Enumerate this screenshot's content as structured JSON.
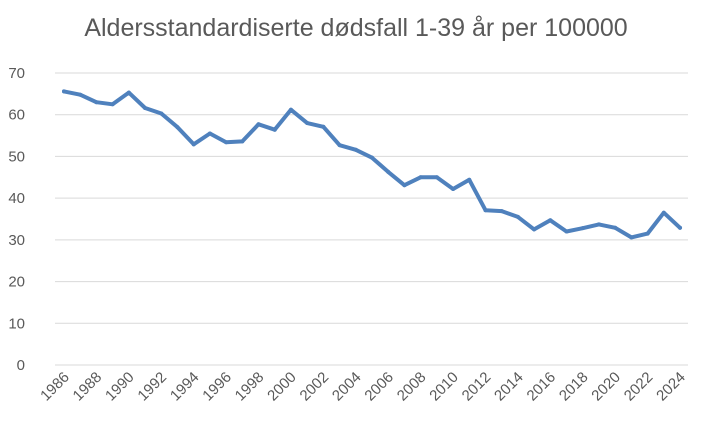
{
  "chart_data": {
    "type": "line",
    "title": "Aldersstandardiserte dødsfall 1-39 år per 100000",
    "xlabel": "",
    "ylabel": "",
    "ylim": [
      0,
      70
    ],
    "yticks": [
      0,
      10,
      20,
      30,
      40,
      50,
      60,
      70
    ],
    "xticks": [
      1986,
      1988,
      1990,
      1992,
      1994,
      1996,
      1998,
      2000,
      2002,
      2004,
      2006,
      2008,
      2010,
      2012,
      2014,
      2016,
      2018,
      2020,
      2022,
      2024
    ],
    "grid": true,
    "line_color": "#4f81bd",
    "x": [
      1986,
      1987,
      1988,
      1989,
      1990,
      1991,
      1992,
      1993,
      1994,
      1995,
      1996,
      1997,
      1998,
      1999,
      2000,
      2001,
      2002,
      2003,
      2004,
      2005,
      2006,
      2007,
      2008,
      2009,
      2010,
      2011,
      2012,
      2013,
      2014,
      2015,
      2016,
      2017,
      2018,
      2019,
      2020,
      2021,
      2022,
      2023,
      2024
    ],
    "values": [
      65.6,
      64.8,
      63.0,
      62.5,
      65.3,
      61.6,
      60.3,
      57.0,
      52.9,
      55.5,
      53.4,
      53.6,
      57.7,
      56.4,
      61.2,
      58.0,
      57.1,
      52.7,
      51.6,
      49.7,
      46.3,
      43.1,
      45.0,
      45.0,
      42.2,
      44.4,
      37.1,
      36.9,
      35.5,
      32.5,
      34.7,
      32.0,
      32.8,
      33.7,
      32.9,
      30.6,
      31.5,
      36.5,
      32.9
    ]
  }
}
